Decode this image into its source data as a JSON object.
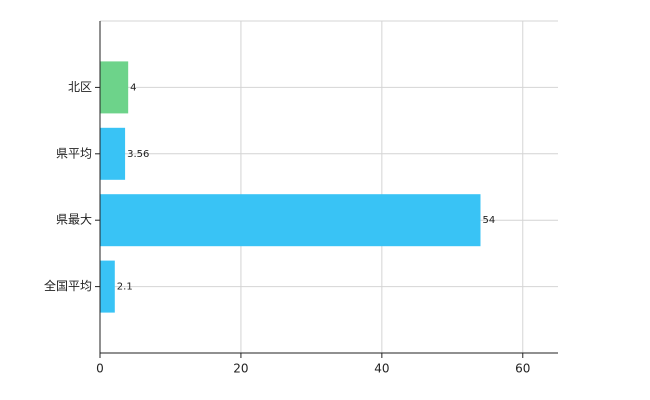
{
  "chart_data": {
    "type": "bar",
    "orientation": "horizontal",
    "categories": [
      "北区",
      "県平均",
      "県最大",
      "全国平均"
    ],
    "values": [
      4,
      3.56,
      54,
      2.1
    ],
    "colors": [
      "#6dd38a",
      "#39c3f5",
      "#39c3f5",
      "#39c3f5"
    ],
    "xlim": [
      0,
      65
    ],
    "xticks": [
      0,
      20,
      40,
      60
    ],
    "grid": true
  }
}
